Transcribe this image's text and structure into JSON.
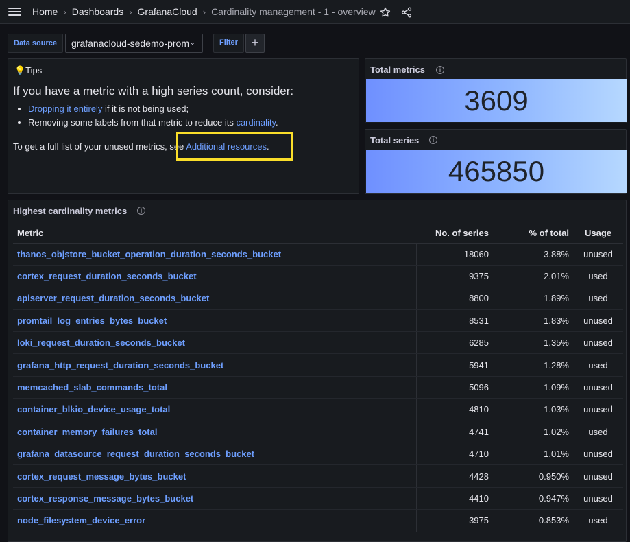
{
  "topbar": {
    "breadcrumbs": [
      "Home",
      "Dashboards",
      "GrafanaCloud",
      "Cardinality management - 1 - overview"
    ]
  },
  "controls": {
    "datasource_label": "Data source",
    "datasource_value": "grafanacloud-sedemo-prom",
    "filter_label": "Filter",
    "add_label": "+"
  },
  "tips": {
    "title": "💡Tips",
    "heading": "If you have a metric with a high series count, consider:",
    "item1_link": "Dropping it entirely",
    "item1_rest": " if it is not being used;",
    "item2_text": "Removing some labels from that metric to reduce its ",
    "item2_link": "cardinality",
    "item2_end": ".",
    "footer_text": "To get a full list of your unused metrics, see ",
    "footer_link": "Additional resources",
    "footer_end": "."
  },
  "stats": {
    "total_metrics_title": "Total metrics",
    "total_metrics_value": "3609",
    "total_series_title": "Total series",
    "total_series_value": "465850"
  },
  "table": {
    "title": "Highest cardinality metrics",
    "headers": [
      "Metric",
      "No. of series",
      "% of total",
      "Usage"
    ],
    "rows": [
      {
        "metric": "thanos_objstore_bucket_operation_duration_seconds_bucket",
        "series": "18060",
        "pct": "3.88%",
        "usage": "unused"
      },
      {
        "metric": "cortex_request_duration_seconds_bucket",
        "series": "9375",
        "pct": "2.01%",
        "usage": "used"
      },
      {
        "metric": "apiserver_request_duration_seconds_bucket",
        "series": "8800",
        "pct": "1.89%",
        "usage": "used"
      },
      {
        "metric": "promtail_log_entries_bytes_bucket",
        "series": "8531",
        "pct": "1.83%",
        "usage": "unused"
      },
      {
        "metric": "loki_request_duration_seconds_bucket",
        "series": "6285",
        "pct": "1.35%",
        "usage": "unused"
      },
      {
        "metric": "grafana_http_request_duration_seconds_bucket",
        "series": "5941",
        "pct": "1.28%",
        "usage": "used"
      },
      {
        "metric": "memcached_slab_commands_total",
        "series": "5096",
        "pct": "1.09%",
        "usage": "unused"
      },
      {
        "metric": "container_blkio_device_usage_total",
        "series": "4810",
        "pct": "1.03%",
        "usage": "unused"
      },
      {
        "metric": "container_memory_failures_total",
        "series": "4741",
        "pct": "1.02%",
        "usage": "used"
      },
      {
        "metric": "grafana_datasource_request_duration_seconds_bucket",
        "series": "4710",
        "pct": "1.01%",
        "usage": "unused"
      },
      {
        "metric": "cortex_request_message_bytes_bucket",
        "series": "4428",
        "pct": "0.950%",
        "usage": "unused"
      },
      {
        "metric": "cortex_response_message_bytes_bucket",
        "series": "4410",
        "pct": "0.947%",
        "usage": "unused"
      },
      {
        "metric": "node_filesystem_device_error",
        "series": "3975",
        "pct": "0.853%",
        "usage": "used"
      }
    ]
  },
  "colors": {
    "link": "#6e9fff",
    "highlight": "#fade2a",
    "background": "#111217",
    "panel": "#181b1f"
  },
  "icons": [
    "menu-icon",
    "star-icon",
    "share-icon",
    "info-icon",
    "chevron-down-icon",
    "plus-icon",
    "lightbulb-icon"
  ]
}
